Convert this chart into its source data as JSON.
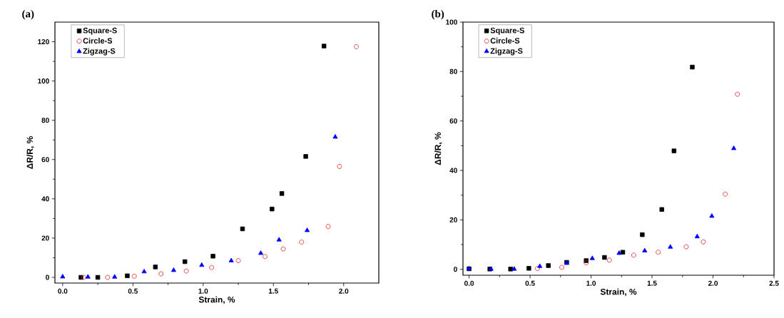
{
  "chart_data": [
    {
      "type": "scatter",
      "title": "(a)",
      "xlabel": "Strain, %",
      "ylabel": "ΔR/R, %",
      "legend": "top left",
      "xlim": [
        -0.055,
        2.25
      ],
      "ylim": [
        -2.9,
        130
      ],
      "xticks": [
        {
          "value": 0,
          "label": "0.0"
        },
        0.5,
        {
          "value": 1,
          "label": "1.0"
        },
        1.5,
        {
          "value": 2,
          "label": "2.0"
        }
      ],
      "yticks": [
        0,
        20,
        40,
        60,
        80,
        100,
        120
      ],
      "series": [
        {
          "name": "Square-S",
          "color": "#000000",
          "marker": "square",
          "x": [
            0.13,
            0.25,
            0.46,
            0.66,
            0.87,
            1.07,
            1.28,
            1.49,
            1.56,
            1.73,
            1.86
          ],
          "values": [
            0,
            0,
            0.8,
            5.3,
            8,
            10.8,
            24.7,
            34.8,
            42.7,
            61.6,
            117.8
          ]
        },
        {
          "name": "Circle-S",
          "color": "#e02020",
          "marker": "circle",
          "x": [
            0.15,
            0.32,
            0.51,
            0.7,
            0.88,
            1.06,
            1.25,
            1.44,
            1.57,
            1.7,
            1.89,
            1.97,
            2.09
          ],
          "values": [
            0,
            0,
            0.6,
            1.8,
            3.2,
            5,
            8.5,
            10.6,
            14.5,
            18,
            25.9,
            56.5,
            117.5
          ]
        },
        {
          "name": "Zigzag-S",
          "color": "#0000ff",
          "marker": "triangle",
          "x": [
            0,
            0.18,
            0.37,
            0.58,
            0.79,
            0.99,
            1.2,
            1.41,
            1.54,
            1.74,
            1.94
          ],
          "values": [
            0.3,
            0.2,
            0.2,
            2.9,
            3.6,
            6.2,
            8.5,
            12.3,
            19.1,
            23.9,
            71.5
          ]
        }
      ]
    },
    {
      "type": "scatter",
      "title": "(b)",
      "xlabel": "Strain, %",
      "ylabel": "ΔR/R, %",
      "legend": "top left",
      "xlim": [
        -0.05,
        2.5
      ],
      "ylim": [
        -2.4,
        100
      ],
      "xticks": [
        {
          "value": 0,
          "label": "0.0"
        },
        0.5,
        {
          "value": 1,
          "label": "1.0"
        },
        1.5,
        {
          "value": 2,
          "label": "2.0"
        },
        2.5
      ],
      "yticks": [
        0,
        20,
        40,
        60,
        80,
        100
      ],
      "series": [
        {
          "name": "Square-S",
          "color": "#000000",
          "marker": "square",
          "x": [
            0,
            0.17,
            0.34,
            0.49,
            0.65,
            0.8,
            0.96,
            1.11,
            1.26,
            1.42,
            1.58,
            1.68,
            1.83
          ],
          "values": [
            0.2,
            0.1,
            0.1,
            0.4,
            1.5,
            2.8,
            3.5,
            4.8,
            6.9,
            14,
            24.2,
            47.9,
            81.8
          ]
        },
        {
          "name": "Circle-S",
          "color": "#e02020",
          "marker": "circle",
          "x": [
            0.56,
            0.76,
            0.96,
            1.15,
            1.35,
            1.55,
            1.78,
            1.92,
            2.1,
            2.2
          ],
          "values": [
            0.3,
            0.8,
            2.6,
            3.7,
            5.7,
            6.9,
            9.1,
            11.1,
            30.4,
            70.8
          ]
        },
        {
          "name": "Zigzag-S",
          "color": "#0000ff",
          "marker": "triangle",
          "x": [
            0,
            0.18,
            0.37,
            0.58,
            0.8,
            1.01,
            1.23,
            1.44,
            1.65,
            1.87,
            1.99,
            2.17
          ],
          "values": [
            0.2,
            0.1,
            0.1,
            1.2,
            2.5,
            4.4,
            6.5,
            7.5,
            9,
            13.2,
            21.5,
            48.9
          ]
        }
      ]
    }
  ]
}
